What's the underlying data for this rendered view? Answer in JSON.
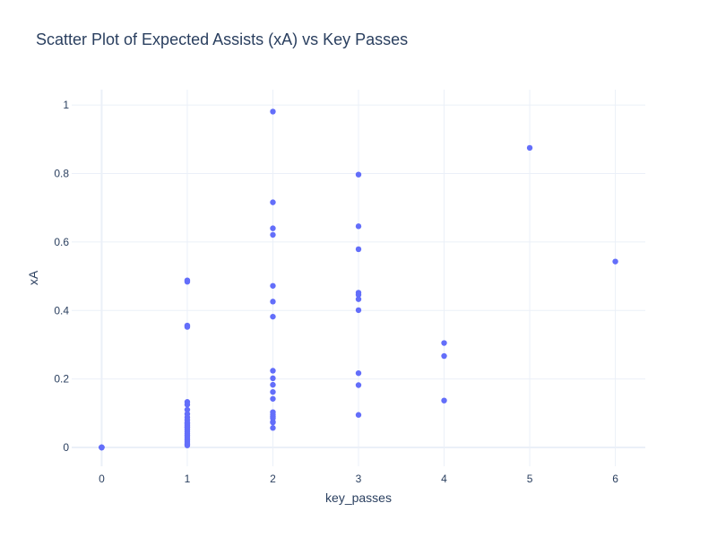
{
  "chart_data": {
    "type": "scatter",
    "title": "Scatter Plot of Expected Assists (xA) vs Key Passes",
    "xlabel": "key_passes",
    "ylabel": "xA",
    "xlim": [
      -0.35,
      6.35
    ],
    "ylim": [
      -0.055,
      1.045
    ],
    "xticks": [
      0,
      1,
      2,
      3,
      4,
      5,
      6
    ],
    "xtick_labels": [
      "0",
      "1",
      "2",
      "3",
      "4",
      "5",
      "6"
    ],
    "yticks": [
      0,
      0.2,
      0.4,
      0.6,
      0.8,
      1
    ],
    "ytick_labels": [
      "0",
      "0.2",
      "0.4",
      "0.6",
      "0.8",
      "1"
    ],
    "grid": true,
    "marker_color": "#636efa",
    "grid_color": "#ebf0f8",
    "text_color": "#2a3f5f",
    "series": [
      {
        "x": [
          0,
          0,
          0,
          0,
          0,
          0,
          0,
          0,
          1,
          1,
          1,
          1,
          1,
          1,
          1,
          1,
          1,
          1,
          1,
          1,
          1,
          1,
          1,
          1,
          1,
          1,
          1,
          1,
          1,
          1,
          1,
          1,
          2,
          2,
          2,
          2,
          2,
          2,
          2,
          2,
          2,
          2,
          2,
          2,
          2,
          2,
          2,
          2,
          2,
          2,
          2,
          3,
          3,
          3,
          3,
          3,
          3,
          3,
          3,
          3,
          3,
          4,
          4,
          4,
          5,
          6
        ],
        "y": [
          0,
          0,
          0,
          0,
          0,
          0,
          0,
          0,
          0.488,
          0.484,
          0.356,
          0.352,
          0.133,
          0.125,
          0.11,
          0.098,
          0.088,
          0.08,
          0.072,
          0.065,
          0.058,
          0.052,
          0.046,
          0.04,
          0.034,
          0.028,
          0.022,
          0.016,
          0.01,
          0.006,
          0.06,
          0.07,
          0.981,
          0.716,
          0.64,
          0.621,
          0.472,
          0.426,
          0.382,
          0.224,
          0.202,
          0.183,
          0.162,
          0.142,
          0.103,
          0.096,
          0.09,
          0.085,
          0.075,
          0.073,
          0.057,
          0.797,
          0.646,
          0.579,
          0.452,
          0.446,
          0.433,
          0.401,
          0.217,
          0.182,
          0.095,
          0.305,
          0.267,
          0.137,
          0.875,
          0.543
        ]
      }
    ]
  }
}
